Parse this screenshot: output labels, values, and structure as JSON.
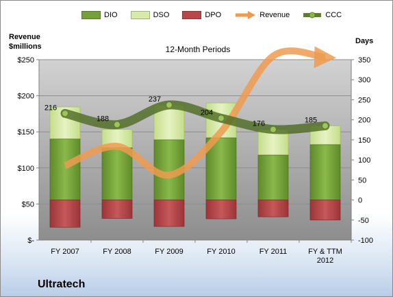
{
  "chart_data": {
    "type": "bar",
    "title": "12-Month Periods",
    "left_axis_title": [
      "Revenue",
      "$millions"
    ],
    "right_axis_title": "Days",
    "footer": "Ultratech",
    "categories": [
      "FY 2007",
      "FY 2008",
      "FY 2009",
      "FY 2010",
      "FY 2011",
      "FY & TTM 2012"
    ],
    "left_axis": {
      "ylim": [
        0,
        250
      ],
      "ticks": [
        0,
        50,
        100,
        150,
        200,
        250
      ],
      "tick_labels": [
        "$-",
        "$50",
        "$100",
        "$150",
        "$200",
        "$250"
      ]
    },
    "right_axis": {
      "ylim": [
        -100,
        350
      ],
      "ticks": [
        -100,
        -50,
        0,
        50,
        100,
        150,
        200,
        250,
        300,
        350
      ]
    },
    "grid": true,
    "legend_position": "top",
    "series": [
      {
        "name": "DIO",
        "type": "stacked-bar",
        "axis": "right",
        "values": [
          152,
          130,
          150,
          155,
          112,
          138
        ],
        "color": "#77a03c"
      },
      {
        "name": "DSO",
        "type": "stacked-bar",
        "axis": "right",
        "values": [
          80,
          46,
          87,
          87,
          64,
          47
        ],
        "color": "#d9ebab"
      },
      {
        "name": "DPO",
        "type": "bar",
        "axis": "right",
        "values": [
          -68,
          -46,
          -66,
          -47,
          -42,
          -50
        ],
        "color": "#b7474a"
      },
      {
        "name": "Revenue",
        "type": "line",
        "axis": "left",
        "values": [
          103,
          130,
          90,
          150,
          255,
          253
        ],
        "color": "#ef9b4f"
      },
      {
        "name": "CCC",
        "type": "line",
        "axis": "right",
        "values": [
          216,
          188,
          237,
          204,
          176,
          185
        ],
        "labels": [
          "216",
          "188",
          "237",
          "204",
          "176",
          "185"
        ],
        "color": "#5e7e2e"
      }
    ]
  }
}
